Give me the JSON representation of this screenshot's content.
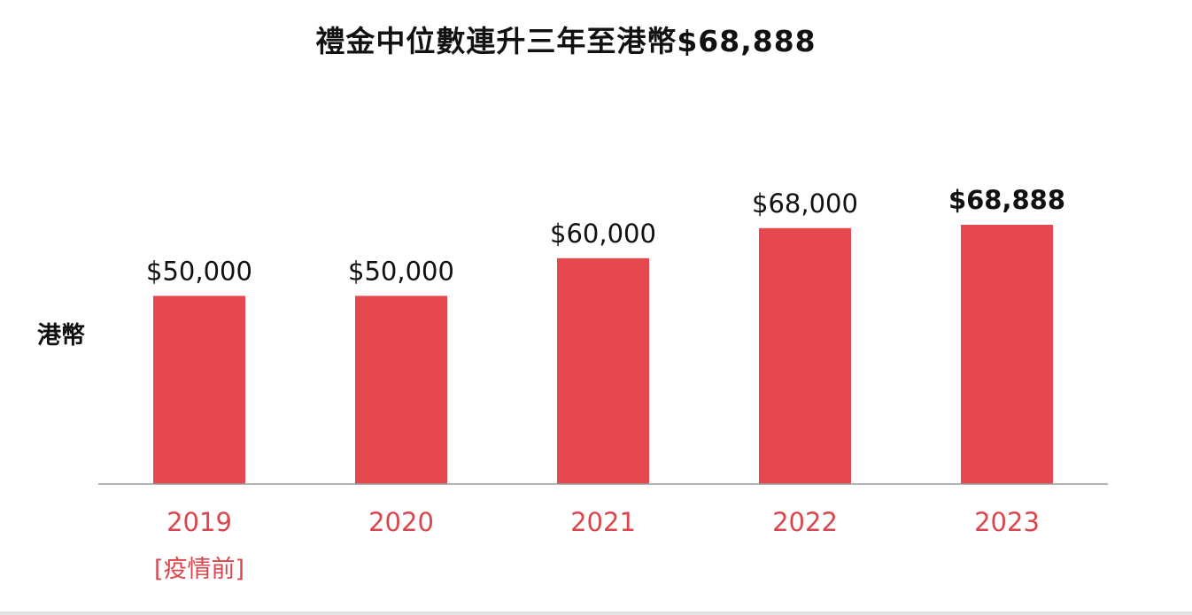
{
  "colors": {
    "bar": "#e5484d",
    "category_label": "#d9474c",
    "value_label": "#111111",
    "axis": "#9a9a9a"
  },
  "chart_data": {
    "type": "bar",
    "title": "禮金中位數連升三年至港幣$68,888",
    "ylabel": "港幣",
    "xlabel": "",
    "categories": [
      "2019",
      "2020",
      "2021",
      "2022",
      "2023"
    ],
    "category_notes": [
      "[疫情前]",
      "",
      "",
      "",
      ""
    ],
    "values": [
      50000,
      50000,
      60000,
      68000,
      68888
    ],
    "value_labels": [
      "$50,000",
      "$50,000",
      "$60,000",
      "$68,000",
      "$68,888"
    ],
    "highlight_index": 4,
    "ylim": [
      0,
      68888
    ],
    "grid": false,
    "legend": "none"
  }
}
